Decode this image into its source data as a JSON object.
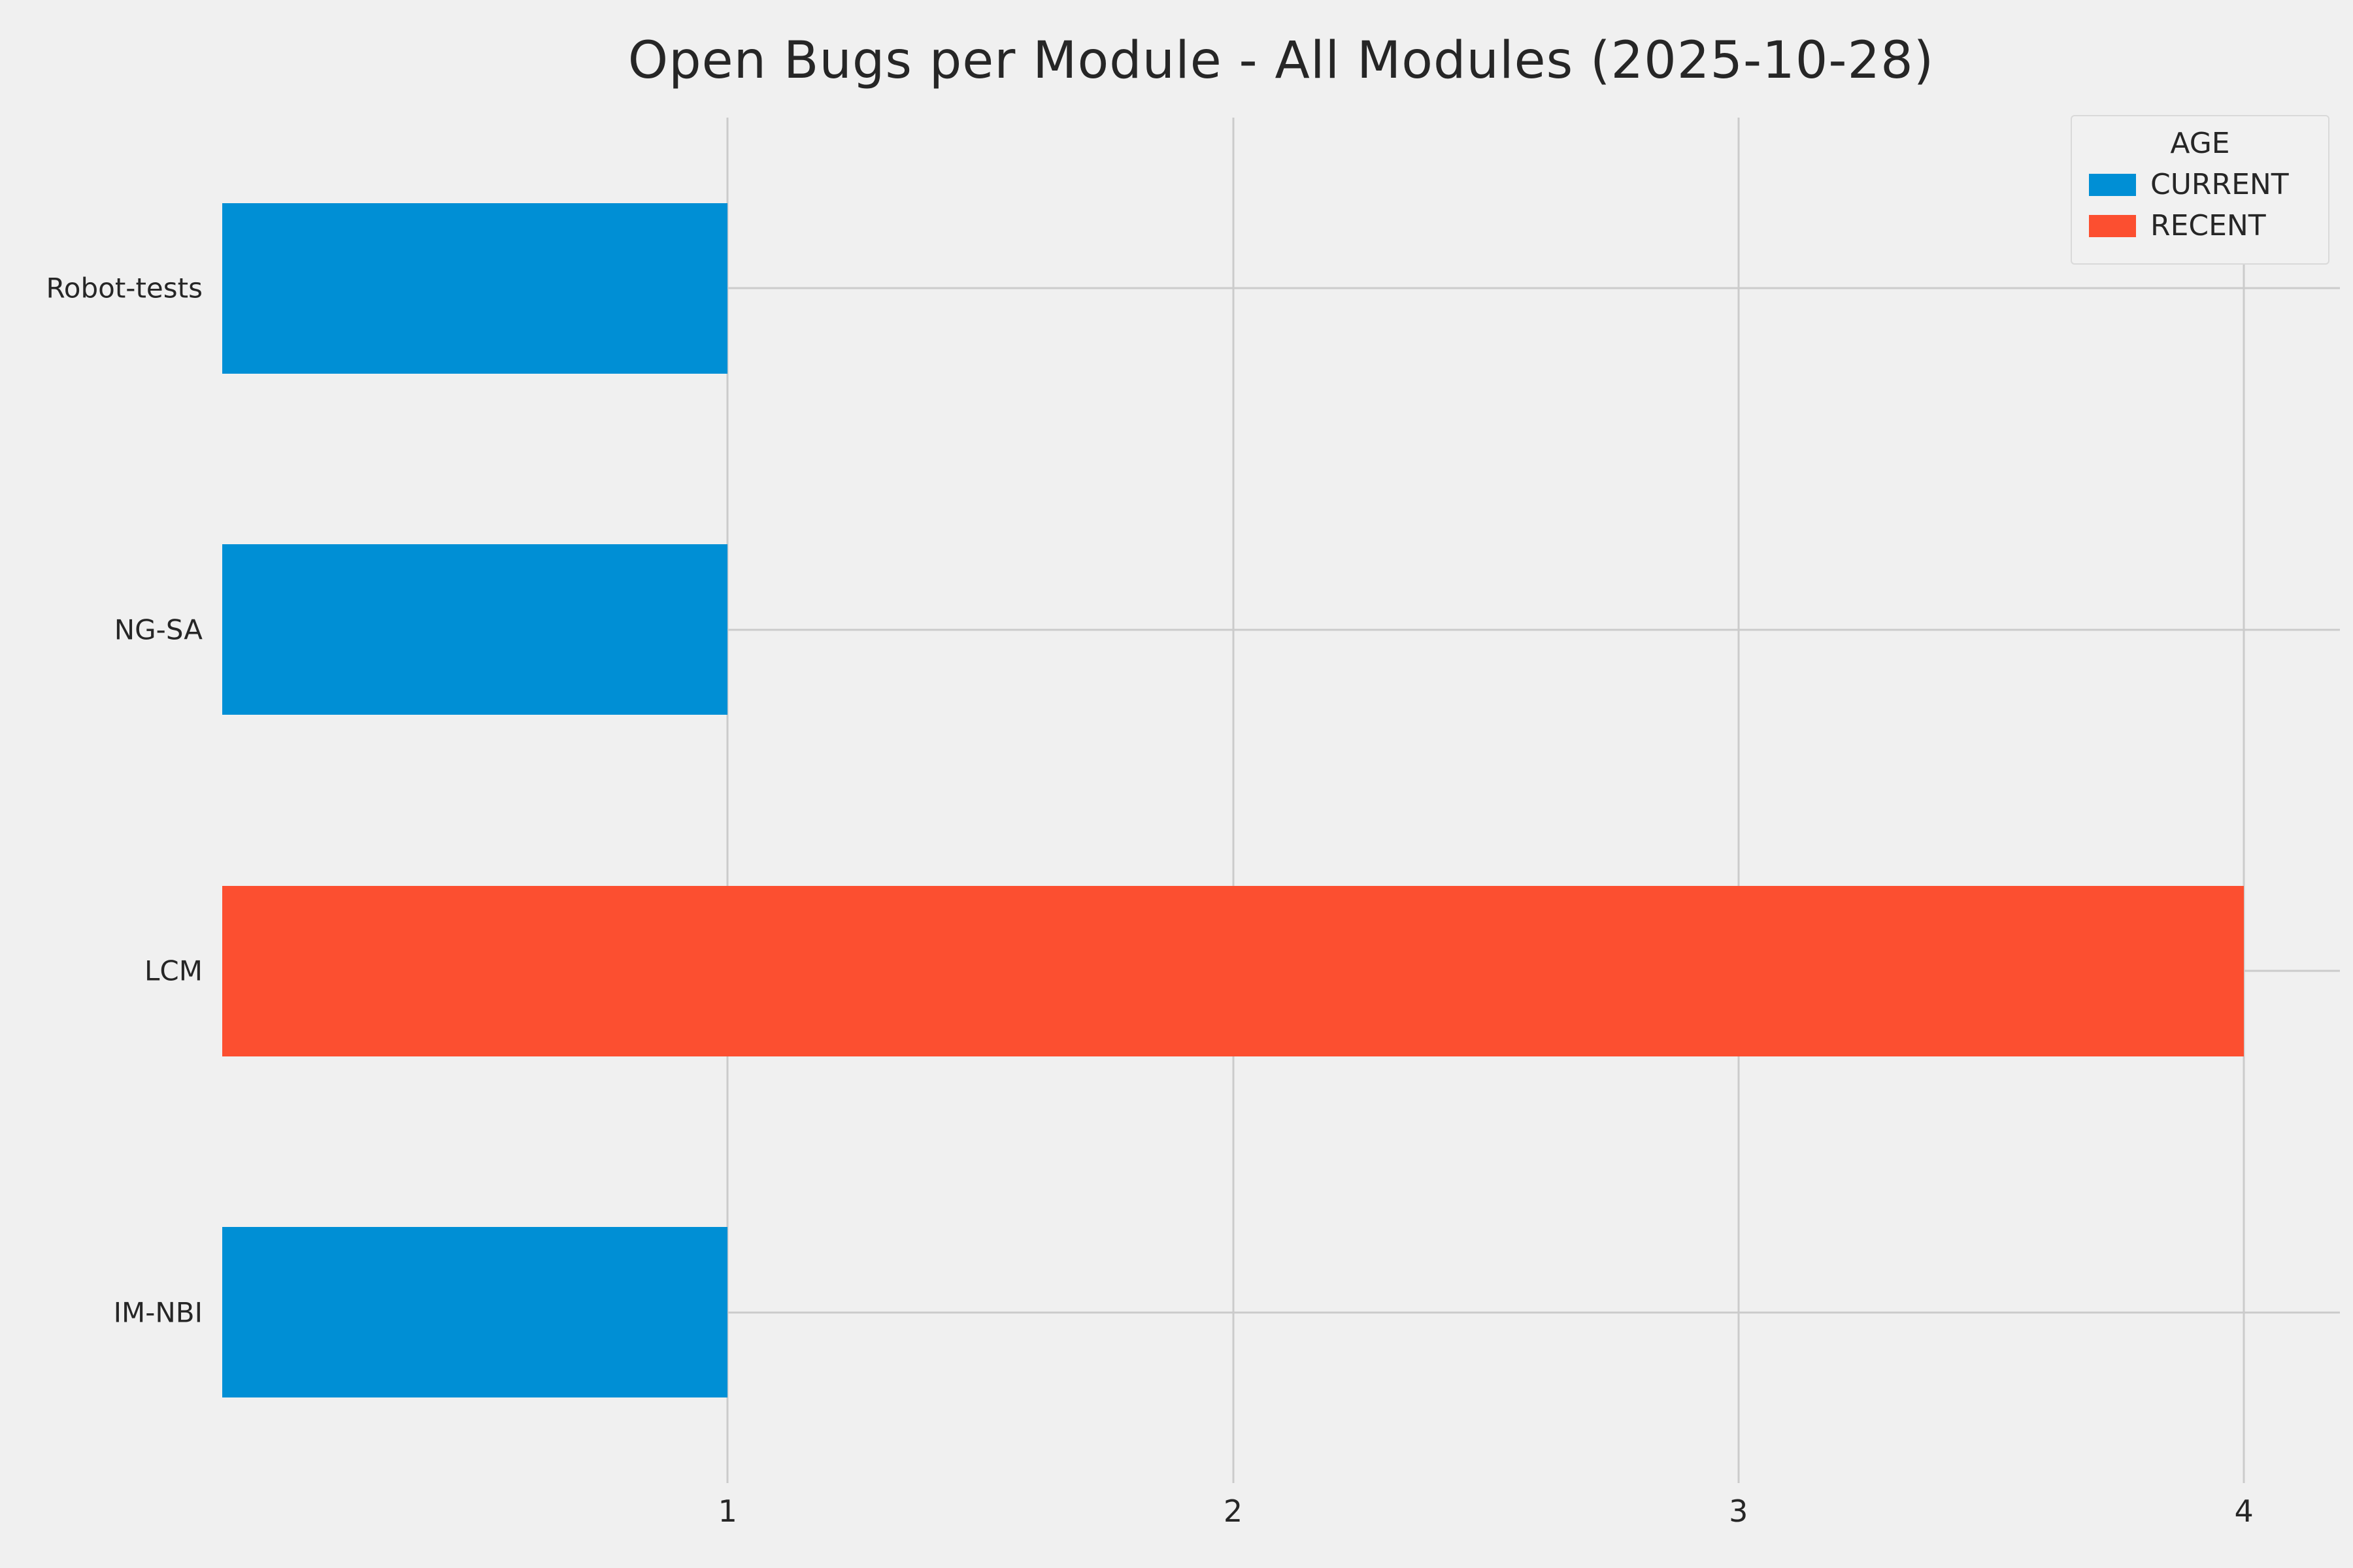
{
  "chart_data": {
    "type": "bar",
    "orientation": "horizontal",
    "title": "Open Bugs per Module - All Modules (2025-10-28)",
    "categories": [
      "Robot-tests",
      "NG-SA",
      "LCM",
      "IM-NBI"
    ],
    "values": [
      1,
      1,
      4,
      1
    ],
    "series_by_bar": [
      "CURRENT",
      "CURRENT",
      "RECENT",
      "CURRENT"
    ],
    "series": [
      {
        "name": "CURRENT",
        "color": "#008fd5"
      },
      {
        "name": "RECENT",
        "color": "#fc4f30"
      }
    ],
    "legend": {
      "title": "AGE",
      "position": "upper-right"
    },
    "xlabel": "",
    "ylabel": "",
    "xlim": [
      0,
      4.19
    ],
    "xticks": [
      1,
      2,
      3,
      4
    ],
    "grid": true,
    "bar_thickness_fraction": 0.5,
    "background_color": "#f0f0f0",
    "grid_color": "#cbcbcb"
  }
}
